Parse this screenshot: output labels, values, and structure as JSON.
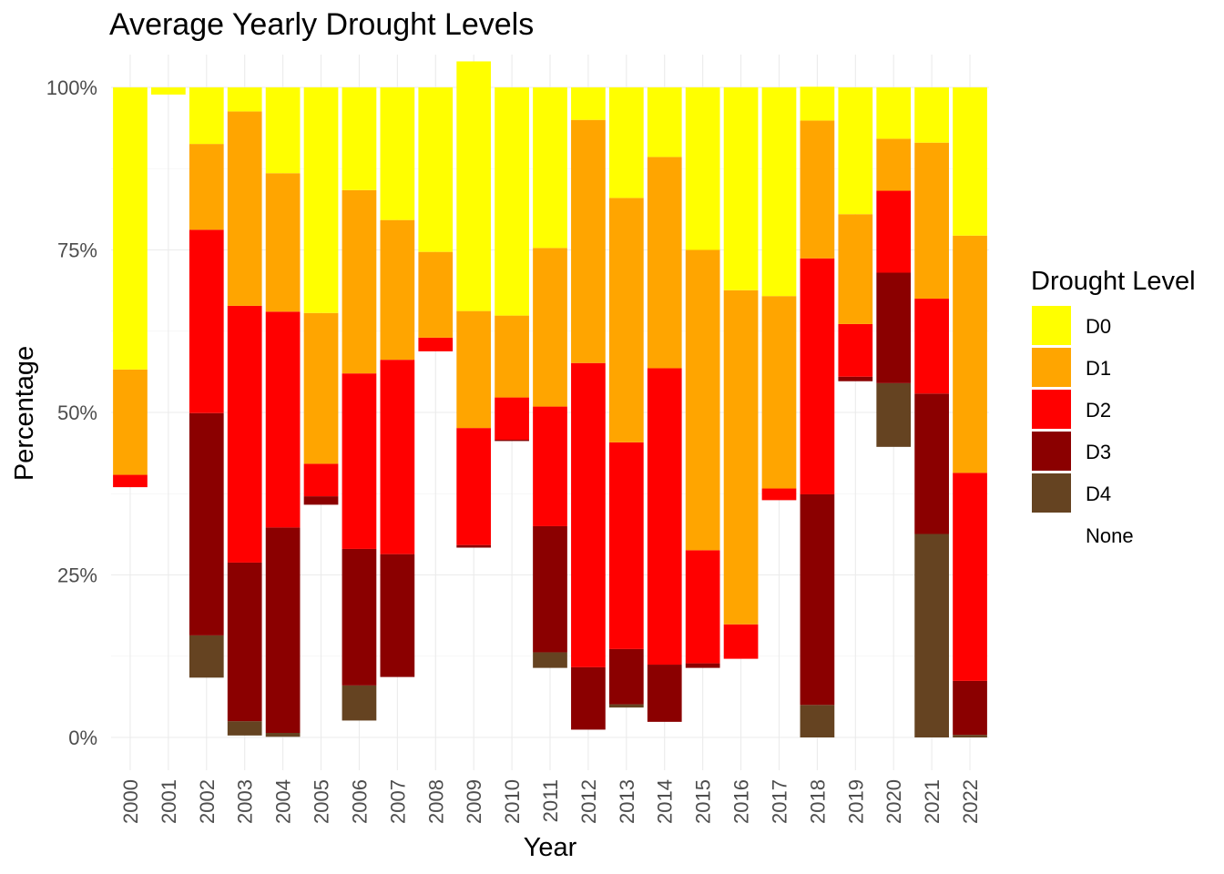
{
  "chart_data": {
    "type": "bar",
    "stacked": true,
    "title": "Average Yearly Drought Levels",
    "xlabel": "Year",
    "ylabel": "Percentage",
    "ylim": [
      0,
      100
    ],
    "y_ticks": [
      "0%",
      "25%",
      "50%",
      "75%",
      "100%"
    ],
    "grid": true,
    "legend": {
      "title": "Drought Level",
      "position": "right"
    },
    "categories": [
      "2000",
      "2001",
      "2002",
      "2003",
      "2004",
      "2005",
      "2006",
      "2007",
      "2008",
      "2009",
      "2010",
      "2011",
      "2012",
      "2013",
      "2014",
      "2015",
      "2016",
      "2017",
      "2018",
      "2019",
      "2020",
      "2021",
      "2022"
    ],
    "series": [
      {
        "name": "D0",
        "color": "#FFFF00",
        "values": [
          43.4,
          1.1,
          8.7,
          3.7,
          13.2,
          34.7,
          15.8,
          20.4,
          25.3,
          38.4,
          35.1,
          24.7,
          5.0,
          17.0,
          10.7,
          25.0,
          31.2,
          32.1,
          5.2,
          19.5,
          7.9,
          8.5,
          22.8
        ]
      },
      {
        "name": "D1",
        "color": "#FFA500",
        "values": [
          16.2,
          0.0,
          13.2,
          29.9,
          21.3,
          23.2,
          28.2,
          21.5,
          13.2,
          18.0,
          12.6,
          24.4,
          37.4,
          37.6,
          32.5,
          46.2,
          51.4,
          29.6,
          21.2,
          16.9,
          8.0,
          24.0,
          36.5
        ]
      },
      {
        "name": "D2",
        "color": "#FF0000",
        "values": [
          1.9,
          0.0,
          28.2,
          39.5,
          33.2,
          5.0,
          27.0,
          29.9,
          2.1,
          18.0,
          6.5,
          18.4,
          46.8,
          31.8,
          45.6,
          17.4,
          5.3,
          1.8,
          36.3,
          8.1,
          12.6,
          14.6,
          32.0
        ]
      },
      {
        "name": "D3",
        "color": "#8B0000",
        "values": [
          0.0,
          0.0,
          34.2,
          24.4,
          31.6,
          1.3,
          21.0,
          18.9,
          0.0,
          0.4,
          0.2,
          19.4,
          9.6,
          8.5,
          8.8,
          0.7,
          0.0,
          0.0,
          32.4,
          0.7,
          17.0,
          21.6,
          8.3
        ]
      },
      {
        "name": "D4",
        "color": "#654321",
        "values": [
          0.0,
          0.0,
          6.5,
          2.2,
          0.6,
          0.0,
          5.4,
          0.0,
          0.0,
          0.0,
          0.0,
          2.4,
          0.0,
          0.5,
          0.0,
          0.0,
          0.0,
          0.0,
          5.0,
          0.0,
          9.8,
          31.3,
          0.4
        ]
      },
      {
        "name": "None",
        "color": "#FFFFFF",
        "values": [
          38.5,
          98.9,
          9.2,
          0.3,
          0.1,
          35.8,
          2.6,
          9.3,
          59.4,
          29.2,
          45.6,
          10.7,
          1.2,
          4.6,
          2.4,
          10.7,
          12.1,
          36.5,
          0.0,
          54.8,
          44.7,
          0.0,
          0.0
        ]
      }
    ]
  }
}
